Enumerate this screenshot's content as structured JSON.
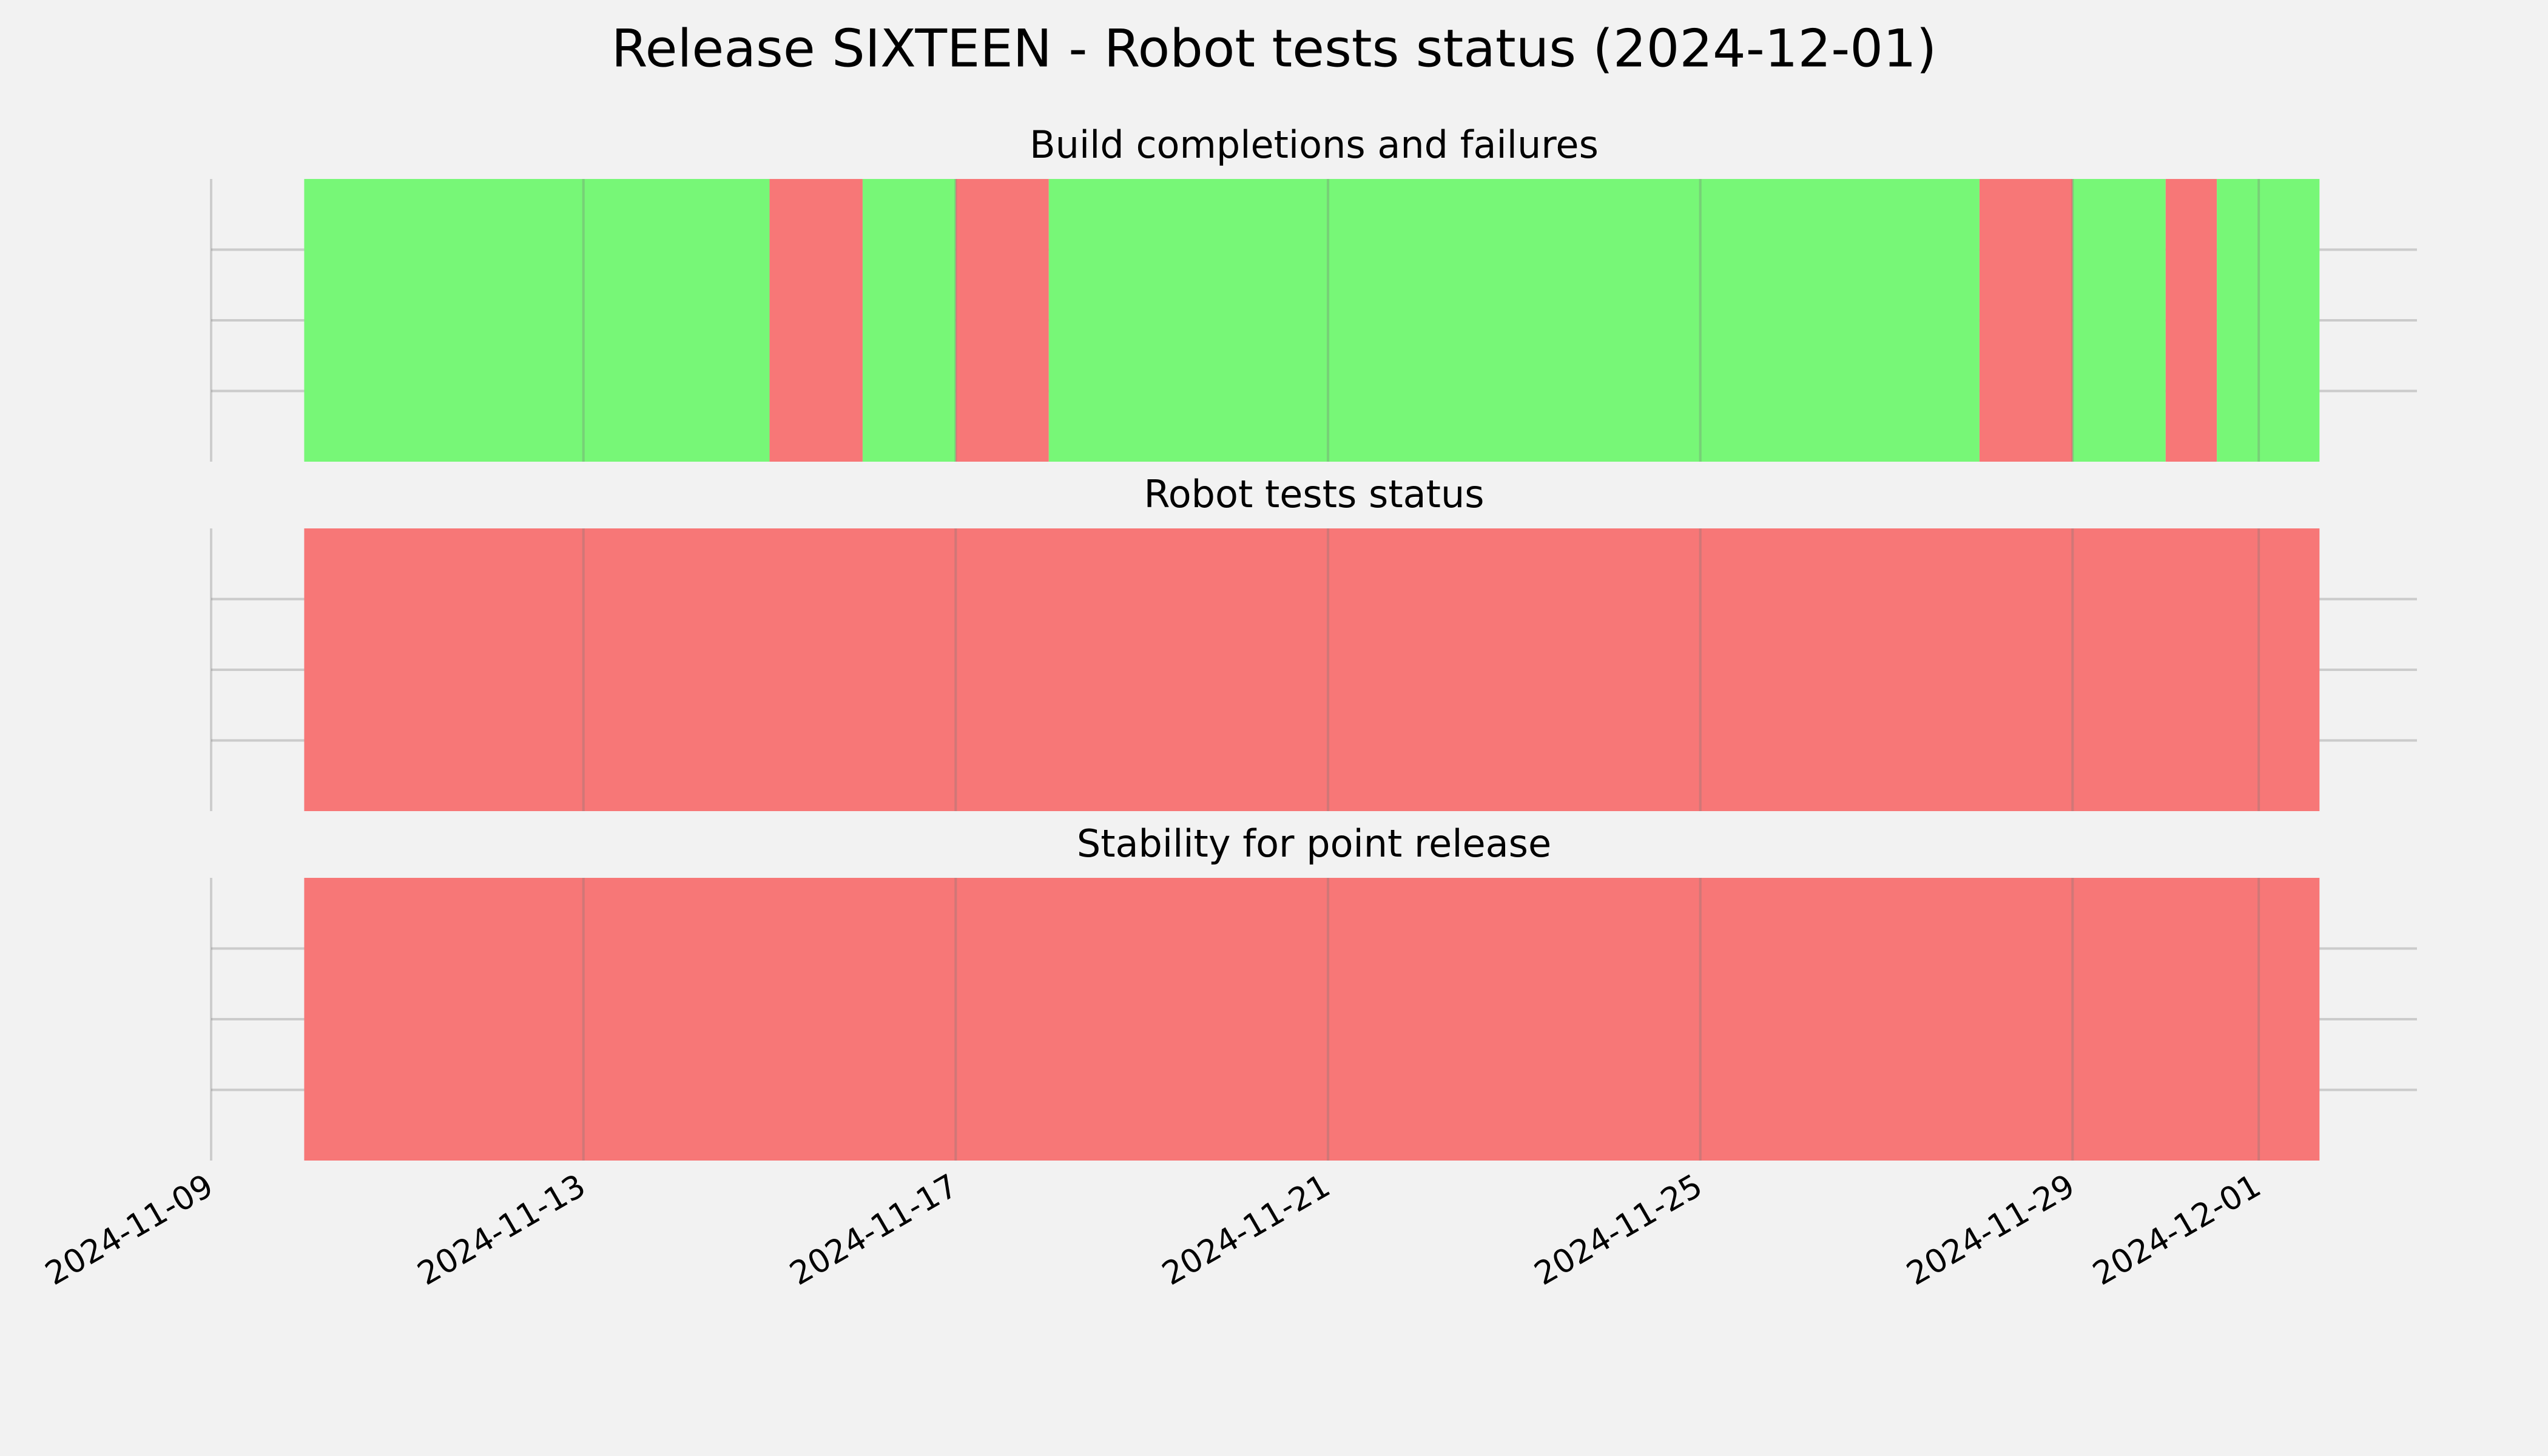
{
  "title": "Release SIXTEEN - Robot tests status (2024-12-01)",
  "chart_data": [
    {
      "type": "span",
      "title": "Build completions and failures",
      "xlim": [
        "2024-11-09T00:00Z",
        "2024-12-02T16:48Z"
      ],
      "xticks": [
        "2024-11-09",
        "2024-11-13",
        "2024-11-17",
        "2024-11-21",
        "2024-11-25",
        "2024-11-29",
        "2024-12-01"
      ],
      "ylim": [
        0,
        1
      ],
      "yticks": [
        0.25,
        0.5,
        0.75
      ],
      "grid": true,
      "spans": [
        {
          "start": "2024-11-10T00:00Z",
          "end": "2024-11-15T00:00Z",
          "color": "#77f777"
        },
        {
          "start": "2024-11-15T00:00Z",
          "end": "2024-11-16T00:00Z",
          "color": "#f77777"
        },
        {
          "start": "2024-11-16T00:00Z",
          "end": "2024-11-17T00:00Z",
          "color": "#77f777"
        },
        {
          "start": "2024-11-17T00:00Z",
          "end": "2024-11-18T00:00Z",
          "color": "#f77777"
        },
        {
          "start": "2024-11-18T00:00Z",
          "end": "2024-11-28T00:00Z",
          "color": "#77f777"
        },
        {
          "start": "2024-11-28T00:00Z",
          "end": "2024-11-29T00:00Z",
          "color": "#f77777"
        },
        {
          "start": "2024-11-29T00:00Z",
          "end": "2024-11-30T00:00Z",
          "color": "#77f777"
        },
        {
          "start": "2024-11-30T00:00Z",
          "end": "2024-11-30T13:12Z",
          "color": "#f77777"
        },
        {
          "start": "2024-11-30T13:12Z",
          "end": "2024-12-01T15:40Z",
          "color": "#77f777"
        }
      ]
    },
    {
      "type": "span",
      "title": "Robot tests status",
      "xlim": [
        "2024-11-09T00:00Z",
        "2024-12-02T16:48Z"
      ],
      "xticks": [
        "2024-11-09",
        "2024-11-13",
        "2024-11-17",
        "2024-11-21",
        "2024-11-25",
        "2024-11-29",
        "2024-12-01"
      ],
      "ylim": [
        0,
        1
      ],
      "yticks": [
        0.25,
        0.5,
        0.75
      ],
      "grid": true,
      "spans": [
        {
          "start": "2024-11-10T00:00Z",
          "end": "2024-12-01T15:40Z",
          "color": "#f77777"
        }
      ]
    },
    {
      "type": "span",
      "title": "Stability for point release",
      "xlim": [
        "2024-11-09T00:00Z",
        "2024-12-02T16:48Z"
      ],
      "xticks": [
        "2024-11-09",
        "2024-11-13",
        "2024-11-17",
        "2024-11-21",
        "2024-11-25",
        "2024-11-29",
        "2024-12-01"
      ],
      "ylim": [
        0,
        1
      ],
      "yticks": [
        0.25,
        0.5,
        0.75
      ],
      "grid": true,
      "spans": [
        {
          "start": "2024-11-10T00:00Z",
          "end": "2024-12-01T15:40Z",
          "color": "#f77777"
        }
      ]
    }
  ]
}
